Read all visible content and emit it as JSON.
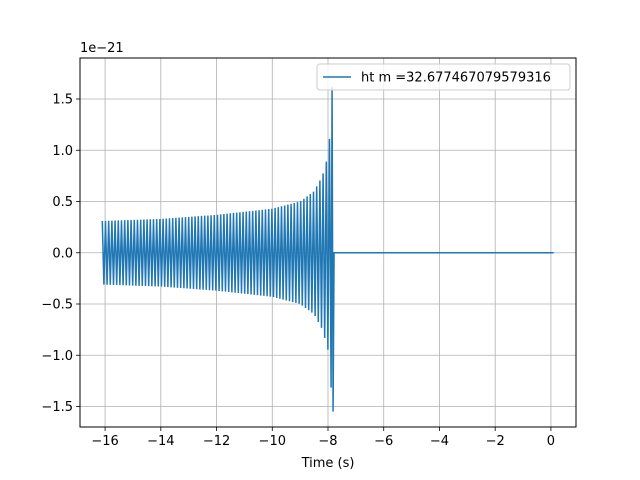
{
  "chart_data": {
    "type": "line",
    "title": "",
    "xlabel": "Time (s)",
    "ylabel": "",
    "offset_text": "1e−21",
    "xlim": [
      -16.9,
      0.9
    ],
    "ylim": [
      -1.7,
      1.9
    ],
    "xticks": [
      -16,
      -14,
      -12,
      -10,
      -8,
      -6,
      -4,
      -2,
      0
    ],
    "xtick_labels": [
      "−16",
      "−14",
      "−12",
      "−10",
      "−8",
      "−6",
      "−4",
      "−2",
      "0"
    ],
    "yticks": [
      -1.5,
      -1.0,
      -0.5,
      0.0,
      0.5,
      1.0,
      1.5
    ],
    "ytick_labels": [
      "−1.5",
      "−1.0",
      "−0.5",
      "0.0",
      "0.5",
      "1.0",
      "1.5"
    ],
    "grid": true,
    "legend_position": "upper right",
    "series": [
      {
        "name": "ht m =32.677467079579316",
        "color": "#1f77b4",
        "signal": "chirp",
        "t_start": -16.1,
        "t_merger": -7.8,
        "t_end": 0.1,
        "envelope": [
          [
            -16.1,
            0.31
          ],
          [
            -14.0,
            0.33
          ],
          [
            -12.0,
            0.37
          ],
          [
            -10.0,
            0.43
          ],
          [
            -9.0,
            0.5
          ],
          [
            -8.5,
            0.6
          ],
          [
            -8.2,
            0.75
          ],
          [
            -8.0,
            0.95
          ],
          [
            -7.9,
            1.25
          ],
          [
            -7.85,
            1.55
          ]
        ],
        "peak_max": 1.62,
        "peak_min": -1.55,
        "post_merger_value": 0.0
      }
    ]
  }
}
